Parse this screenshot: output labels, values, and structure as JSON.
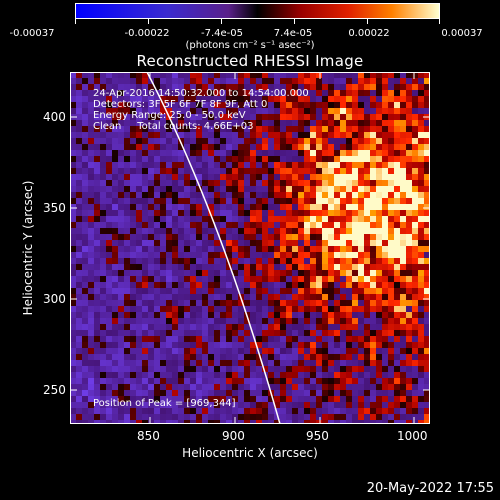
{
  "colorbar": {
    "ticks": [
      "-0.00037",
      "-0.00022",
      "-7.4e-05",
      "7.4e-05",
      "0.00022",
      "0.00037"
    ],
    "units": "(photons cm⁻² s⁻¹ asec⁻²)"
  },
  "title": "Reconstructed RHESSI Image",
  "info": {
    "time_range": "24-Apr-2016 14:50:32.000 to 14:54:00.000",
    "detectors": "Detectors: 3F 5F 6F 7F 8F 9F, Att 0",
    "energy_range": "Energy Range: 25.0 - 50.0 keV",
    "clean_counts": "Clean     Total counts: 4.66E+03",
    "peak": "Position of Peak = [969,344]"
  },
  "axes": {
    "xlabel": "Heliocentric X (arcsec)",
    "ylabel": "Heliocentric Y (arcsec)",
    "xticks": [
      "850",
      "900",
      "950",
      "1000"
    ],
    "yticks": [
      "250",
      "300",
      "350",
      "400"
    ],
    "xlim": [
      813,
      1000
    ],
    "ylim": [
      229,
      424
    ]
  },
  "footer": {
    "date": "20-May-2022 17:55"
  },
  "colors": {
    "background": "#000000",
    "axis": "#ffffff",
    "limb": "#ffffff"
  }
}
